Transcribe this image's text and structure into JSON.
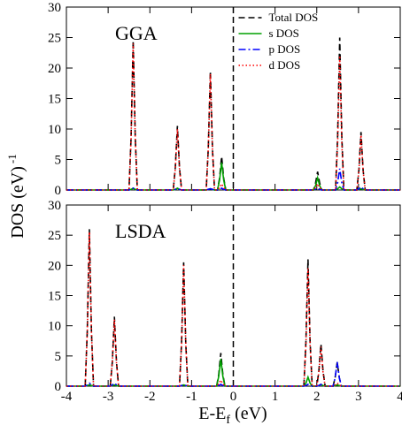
{
  "chart_data": [
    {
      "type": "line",
      "label": "GGA",
      "ylabel": "DOS (eV)",
      "ylabel_sup": "-1",
      "legend": "top",
      "vline": 0,
      "xlim": [
        -4,
        4
      ],
      "ylim": [
        0,
        30
      ],
      "xticks": [
        -4,
        -3,
        -2,
        -1,
        0,
        1,
        2,
        3,
        4
      ],
      "xtick_labels": false,
      "yticks": [
        0,
        5,
        10,
        15,
        20,
        25,
        30
      ],
      "x": [
        -4,
        -2.5,
        -2.45,
        -2.4,
        -2.35,
        -2.3,
        -1.44,
        -1.39,
        -1.34,
        -1.29,
        -1.24,
        -0.65,
        -0.6,
        -0.55,
        -0.5,
        -0.45,
        -0.38,
        -0.33,
        -0.28,
        -0.23,
        -0.18,
        1.92,
        1.97,
        2.02,
        2.07,
        2.12,
        2.45,
        2.5,
        2.55,
        2.6,
        2.65,
        2.96,
        3.01,
        3.06,
        3.11,
        3.16,
        4
      ],
      "series": [
        {
          "name": "Total DOS",
          "color": "#000000",
          "style": "dashed",
          "values": [
            0,
            0,
            8.6,
            24.5,
            8.6,
            0,
            0,
            3.7,
            10.5,
            3.7,
            0,
            0,
            6.8,
            19.5,
            6.8,
            0,
            0,
            1.9,
            5.5,
            1.9,
            0,
            0,
            1.1,
            3,
            1.1,
            0,
            0,
            8.8,
            25,
            8.8,
            0,
            0,
            3.3,
            9.5,
            3.3,
            0,
            0
          ]
        },
        {
          "name": "s DOS",
          "color": "#00a000",
          "style": "solid",
          "values": [
            0,
            0,
            0.1,
            0.3,
            0.1,
            0,
            0,
            0.1,
            0.3,
            0.1,
            0,
            0,
            0.1,
            0.2,
            0.1,
            0,
            0,
            1.6,
            4.5,
            1.6,
            0,
            0,
            0.7,
            2,
            0.7,
            0,
            0,
            0.2,
            0.5,
            0.2,
            0,
            0,
            0.1,
            0.2,
            0.1,
            0,
            0
          ]
        },
        {
          "name": "p DOS",
          "color": "#0000ff",
          "style": "dashdot",
          "values": [
            0,
            0,
            0.1,
            0.3,
            0.1,
            0,
            0,
            0.1,
            0.2,
            0.1,
            0,
            0,
            0.1,
            0.2,
            0.1,
            0,
            0,
            0.1,
            0.3,
            0.1,
            0,
            0,
            0.1,
            0.3,
            0.1,
            0,
            0,
            1.2,
            3.5,
            1.2,
            0,
            0,
            0.2,
            0.5,
            0.2,
            0,
            0
          ]
        },
        {
          "name": "d DOS",
          "color": "#ff0000",
          "style": "dotted",
          "values": [
            0,
            0,
            8.4,
            24,
            8.4,
            0,
            0,
            3.5,
            10,
            3.5,
            0,
            0,
            6.7,
            19,
            6.7,
            0,
            0,
            0.4,
            1,
            0.4,
            0,
            0,
            0.4,
            1,
            0.4,
            0,
            0,
            7.7,
            22,
            7.7,
            0,
            0,
            3.2,
            9,
            3.2,
            0,
            0
          ]
        }
      ]
    },
    {
      "type": "line",
      "label": "LSDA",
      "xlabel": "E-E",
      "xlabel_sub": "f",
      "xlabel_unit": "(eV)",
      "vline": 0,
      "xlim": [
        -4,
        4
      ],
      "ylim": [
        0,
        30
      ],
      "xticks": [
        -4,
        -3,
        -2,
        -1,
        0,
        1,
        2,
        3,
        4
      ],
      "xtick_labels": true,
      "yticks": [
        0,
        5,
        10,
        15,
        20,
        25,
        30
      ],
      "x": [
        -4,
        -3.55,
        -3.5,
        -3.45,
        -3.4,
        -3.35,
        -2.95,
        -2.9,
        -2.85,
        -2.8,
        -2.75,
        -1.29,
        -1.24,
        -1.19,
        -1.14,
        -1.09,
        -0.4,
        -0.35,
        -0.3,
        -0.25,
        -0.2,
        1.69,
        1.74,
        1.79,
        1.84,
        1.89,
        2.0,
        2.05,
        2.1,
        2.15,
        2.2,
        2.39,
        2.44,
        2.49,
        2.54,
        2.59,
        4
      ],
      "series": [
        {
          "name": "Total DOS",
          "color": "#000000",
          "style": "dashed",
          "values": [
            0,
            0,
            9.1,
            26,
            9.1,
            0,
            0,
            4,
            11.5,
            4,
            0,
            0,
            7.2,
            20.5,
            7.2,
            0,
            0,
            1.9,
            5.5,
            1.9,
            0,
            0,
            7.4,
            21,
            7.4,
            0,
            0,
            2.5,
            7,
            2.5,
            0,
            0,
            1.4,
            4,
            1.4,
            0,
            0
          ]
        },
        {
          "name": "s DOS",
          "color": "#00a000",
          "style": "solid",
          "values": [
            0,
            0,
            0.1,
            0.2,
            0.1,
            0,
            0,
            0.1,
            0.2,
            0.1,
            0,
            0,
            0.1,
            0.2,
            0.1,
            0,
            0,
            1.6,
            4.5,
            1.6,
            0,
            0,
            0.5,
            1.5,
            0.5,
            0,
            0,
            0.1,
            0.3,
            0.1,
            0,
            0,
            0.1,
            0.2,
            0.1,
            0,
            0
          ]
        },
        {
          "name": "p DOS",
          "color": "#0000ff",
          "style": "dashdot",
          "values": [
            0,
            0,
            0.2,
            0.5,
            0.2,
            0,
            0,
            0.2,
            0.5,
            0.2,
            0,
            0,
            0.1,
            0.2,
            0.1,
            0,
            0,
            0.1,
            0.3,
            0.1,
            0,
            0,
            0.1,
            0.3,
            0.1,
            0,
            0,
            0.1,
            0.3,
            0.1,
            0,
            0,
            1.4,
            4,
            1.4,
            0,
            0
          ]
        },
        {
          "name": "d DOS",
          "color": "#ff0000",
          "style": "dotted",
          "values": [
            0,
            0,
            8.9,
            25.5,
            8.9,
            0,
            0,
            3.9,
            11,
            3.9,
            0,
            0,
            7,
            20,
            7,
            0,
            0,
            0.4,
            1,
            0.4,
            0,
            0,
            6.8,
            19.5,
            6.8,
            0,
            0,
            2.3,
            6.5,
            2.3,
            0,
            0,
            0.2,
            0.5,
            0.2,
            0,
            0
          ]
        }
      ]
    }
  ]
}
